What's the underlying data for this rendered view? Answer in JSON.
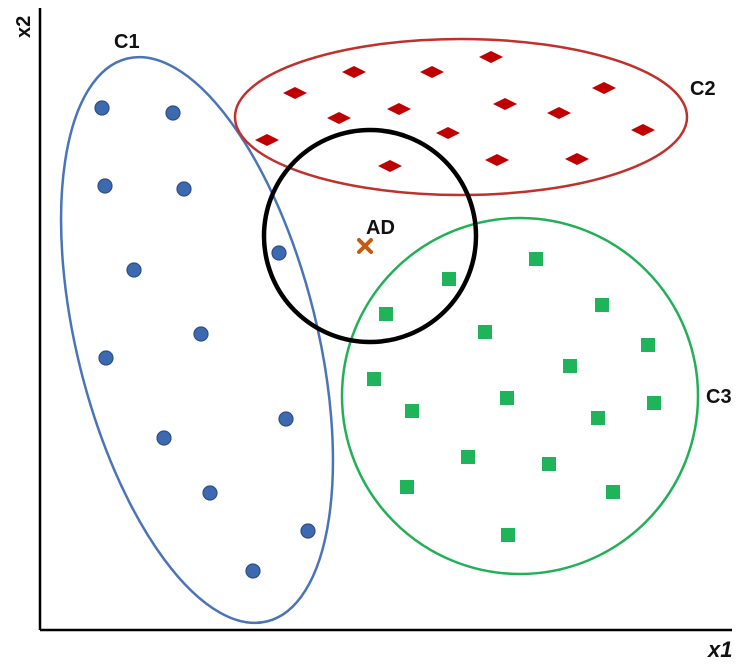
{
  "axes": {
    "x_label": "x1",
    "y_label": "x2"
  },
  "clusters": [
    {
      "id": "C1",
      "label": "C1",
      "color": "#4a74b8",
      "fill": "#3d69b0",
      "marker": "circle",
      "points": [
        [
          102,
          108
        ],
        [
          173,
          113
        ],
        [
          105,
          186
        ],
        [
          184,
          189
        ],
        [
          134,
          270
        ],
        [
          279,
          253
        ],
        [
          201,
          334
        ],
        [
          106,
          358
        ],
        [
          164,
          438
        ],
        [
          286,
          419
        ],
        [
          210,
          493
        ],
        [
          308,
          531
        ],
        [
          253,
          571
        ]
      ]
    },
    {
      "id": "C2",
      "label": "C2",
      "color": "#c0302c",
      "fill": "#c00000",
      "marker": "diamond",
      "points": [
        [
          491,
          57
        ],
        [
          354,
          72
        ],
        [
          432,
          72
        ],
        [
          295,
          93
        ],
        [
          604,
          88
        ],
        [
          399,
          109
        ],
        [
          505,
          104
        ],
        [
          339,
          118
        ],
        [
          559,
          113
        ],
        [
          267,
          140
        ],
        [
          448,
          133
        ],
        [
          643,
          130
        ],
        [
          390,
          166
        ],
        [
          497,
          160
        ],
        [
          577,
          159
        ]
      ]
    },
    {
      "id": "C3",
      "label": "C3",
      "color": "#22b057",
      "fill": "#1fb35a",
      "marker": "square",
      "points": [
        [
          536,
          259
        ],
        [
          449,
          279
        ],
        [
          602,
          305
        ],
        [
          386,
          314
        ],
        [
          485,
          332
        ],
        [
          648,
          345
        ],
        [
          570,
          366
        ],
        [
          374,
          379
        ],
        [
          507,
          398
        ],
        [
          654,
          403
        ],
        [
          412,
          411
        ],
        [
          598,
          418
        ],
        [
          468,
          457
        ],
        [
          549,
          464
        ],
        [
          407,
          487
        ],
        [
          613,
          492
        ],
        [
          508,
          535
        ]
      ]
    }
  ],
  "anomaly": {
    "label": "AD",
    "marker": "cross",
    "color": "#c55a11"
  },
  "neighborhood": {
    "color": "#000000"
  }
}
